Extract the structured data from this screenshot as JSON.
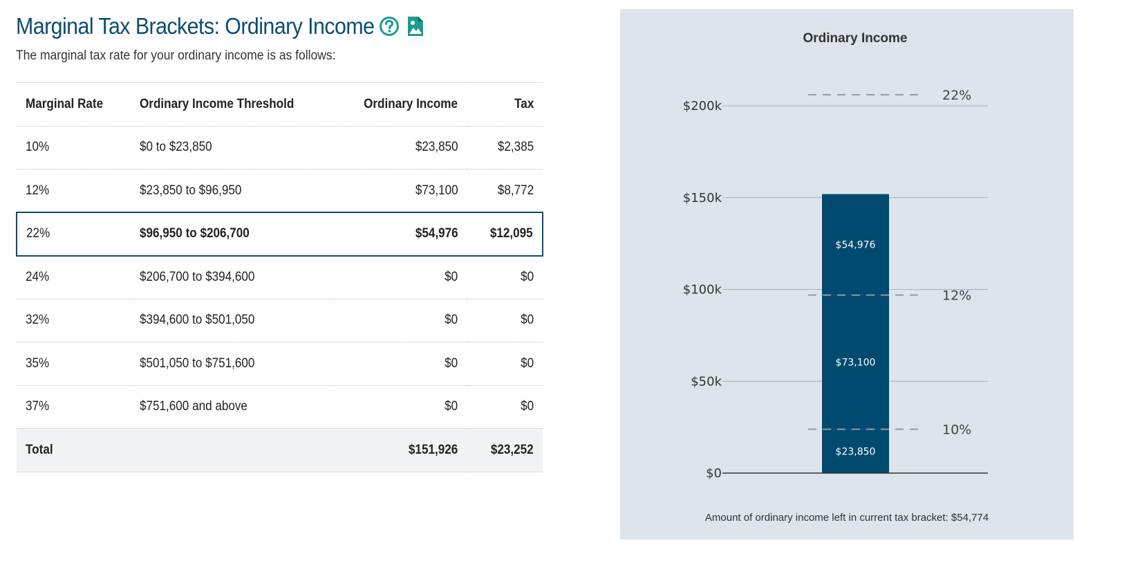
{
  "header": {
    "title": "Marginal Tax Brackets: Ordinary Income",
    "subtitle": "The marginal tax rate for your ordinary income is as follows:"
  },
  "icons": {
    "help": "help-circle-icon",
    "image": "image-file-icon"
  },
  "colors": {
    "accent": "#0b4d6f",
    "icon_teal": "#1a9c8f",
    "bar": "#004a70",
    "panel_bg": "#dde4eb",
    "grid": "#9fb2c3",
    "dash": "#9a9a9a"
  },
  "table": {
    "columns": [
      "Marginal Rate",
      "Ordinary Income Threshold",
      "Ordinary Income",
      "Tax"
    ],
    "rows": [
      {
        "rate": "10%",
        "threshold": "$0 to $23,850",
        "income": "$23,850",
        "tax": "$2,385",
        "highlight": false
      },
      {
        "rate": "12%",
        "threshold": "$23,850 to $96,950",
        "income": "$73,100",
        "tax": "$8,772",
        "highlight": false
      },
      {
        "rate": "22%",
        "threshold": "$96,950 to $206,700",
        "income": "$54,976",
        "tax": "$12,095",
        "highlight": true
      },
      {
        "rate": "24%",
        "threshold": "$206,700 to $394,600",
        "income": "$0",
        "tax": "$0",
        "highlight": false
      },
      {
        "rate": "32%",
        "threshold": "$394,600 to $501,050",
        "income": "$0",
        "tax": "$0",
        "highlight": false
      },
      {
        "rate": "35%",
        "threshold": "$501,050 to $751,600",
        "income": "$0",
        "tax": "$0",
        "highlight": false
      },
      {
        "rate": "37%",
        "threshold": "$751,600 and above",
        "income": "$0",
        "tax": "$0",
        "highlight": false
      }
    ],
    "total": {
      "label": "Total",
      "income": "$151,926",
      "tax": "$23,252"
    }
  },
  "chart_data": {
    "type": "bar",
    "title": "Ordinary Income",
    "xlabel": "",
    "ylabel": "",
    "ylim": [
      0,
      200000
    ],
    "grid": true,
    "y_ticks": [
      {
        "value": 0,
        "label": "$0"
      },
      {
        "value": 50000,
        "label": "$50k"
      },
      {
        "value": 100000,
        "label": "$100k"
      },
      {
        "value": 150000,
        "label": "$150k"
      },
      {
        "value": 200000,
        "label": "$200k"
      }
    ],
    "stacked_segments": [
      {
        "value": 23850,
        "label": "$23,850"
      },
      {
        "value": 73100,
        "label": "$73,100"
      },
      {
        "value": 54976,
        "label": "$54,976"
      }
    ],
    "bracket_thresholds": [
      {
        "value": 23850,
        "label": "10%"
      },
      {
        "value": 96950,
        "label": "12%"
      },
      {
        "value": 206700,
        "label": "22%"
      }
    ],
    "footnote": "Amount of ordinary income left in current tax bracket: $54,774"
  }
}
